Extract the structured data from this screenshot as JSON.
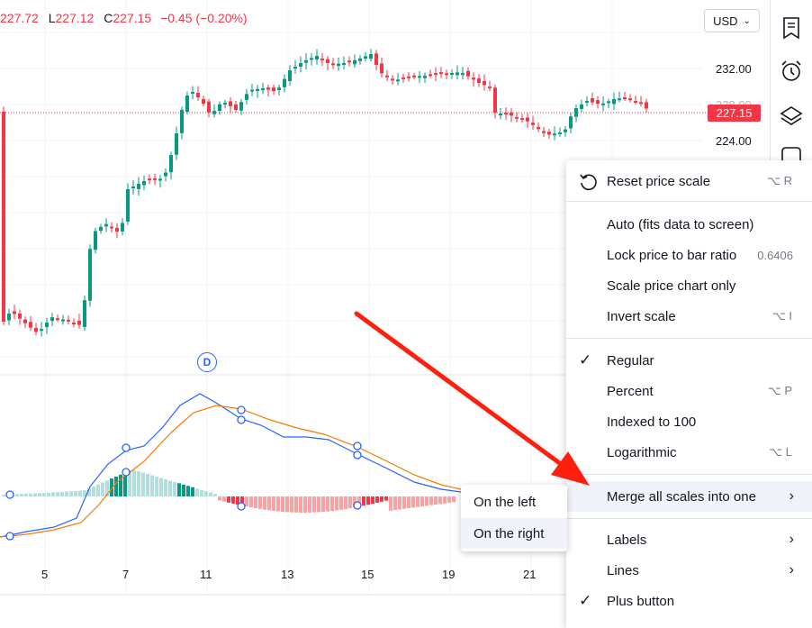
{
  "header": {
    "ohlc": {
      "o_value": "227.72",
      "l_label": "L",
      "l_value": "227.12",
      "c_label": "C",
      "c_value": "227.15",
      "change": "−0.45 (−0.20%)"
    },
    "currency": "USD"
  },
  "price_axis": {
    "labels": [
      "232.00",
      "228.00",
      "224.00"
    ],
    "last_price": "227.15"
  },
  "time_axis": {
    "labels": [
      "5",
      "7",
      "11",
      "13",
      "15",
      "19",
      "21"
    ]
  },
  "dividend_marker": "D",
  "menu": {
    "reset": {
      "label": "Reset price scale",
      "shortcut": "⌥ R"
    },
    "auto": {
      "label": "Auto (fits data to screen)"
    },
    "lock": {
      "label": "Lock price to bar ratio",
      "value": "0.6406"
    },
    "scale_only": {
      "label": "Scale price chart only"
    },
    "invert": {
      "label": "Invert scale",
      "shortcut": "⌥ I"
    },
    "regular": {
      "label": "Regular",
      "checked": true
    },
    "percent": {
      "label": "Percent",
      "shortcut": "⌥ P"
    },
    "indexed": {
      "label": "Indexed to 100"
    },
    "log": {
      "label": "Logarithmic",
      "shortcut": "⌥ L"
    },
    "merge": {
      "label": "Merge all scales into one"
    },
    "labels": {
      "label": "Labels"
    },
    "lines": {
      "label": "Lines"
    },
    "plus": {
      "label": "Plus button",
      "checked": true
    }
  },
  "submenu": {
    "left": "On the left",
    "right": "On the right"
  },
  "icons": {
    "check": "✓",
    "arrow": "›"
  },
  "colors": {
    "up": "#089981",
    "down": "#f23645",
    "macd": "#2962ff",
    "signal": "#f57c00",
    "annotation": "#ff1f0f"
  }
}
